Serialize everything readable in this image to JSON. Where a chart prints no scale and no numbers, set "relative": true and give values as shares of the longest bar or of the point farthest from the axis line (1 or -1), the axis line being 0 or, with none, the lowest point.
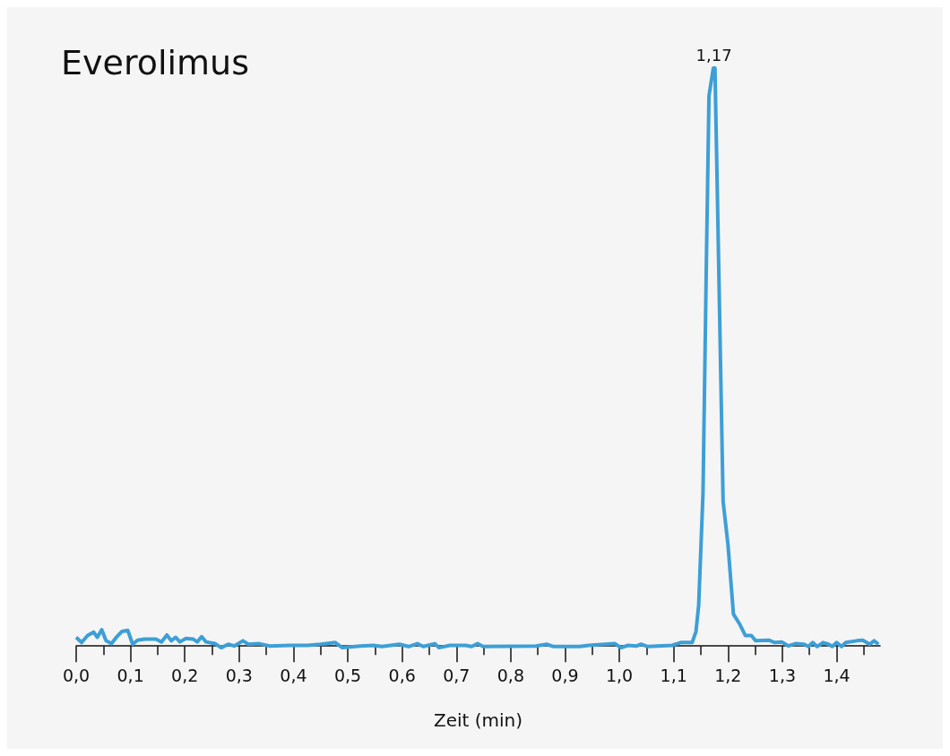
{
  "chart_data": {
    "type": "line",
    "title": "Everolimus",
    "xlabel": "Zeit (min)",
    "relative": true,
    "xlim": [
      0,
      1.48
    ],
    "xticks": [
      {
        "value": 0,
        "label": "0,0"
      },
      {
        "value": 0.05,
        "label": null
      },
      {
        "value": 0.1,
        "label": "0,1"
      },
      {
        "value": 0.15,
        "label": null
      },
      {
        "value": 0.2,
        "label": "0,2"
      },
      {
        "value": 0.25,
        "label": null
      },
      {
        "value": 0.3,
        "label": "0,3"
      },
      {
        "value": 0.35,
        "label": null
      },
      {
        "value": 0.4,
        "label": "0,4"
      },
      {
        "value": 0.45,
        "label": null
      },
      {
        "value": 0.5,
        "label": "0,5"
      },
      {
        "value": 0.55,
        "label": null
      },
      {
        "value": 0.6,
        "label": "0,6"
      },
      {
        "value": 0.65,
        "label": null
      },
      {
        "value": 0.7,
        "label": "0,7"
      },
      {
        "value": 0.75,
        "label": null
      },
      {
        "value": 0.8,
        "label": "0,8"
      },
      {
        "value": 0.85,
        "label": null
      },
      {
        "value": 0.9,
        "label": "0,9"
      },
      {
        "value": 0.95,
        "label": null
      },
      {
        "value": 1.0,
        "label": "1,0"
      },
      {
        "value": 1.05,
        "label": null
      },
      {
        "value": 1.1,
        "label": "1,1"
      },
      {
        "value": 1.15,
        "label": null
      },
      {
        "value": 1.2,
        "label": "1,2"
      },
      {
        "value": 1.25,
        "label": null
      },
      {
        "value": 1.3,
        "label": "1,3"
      },
      {
        "value": 1.35,
        "label": null
      },
      {
        "value": 1.4,
        "label": "1,4"
      },
      {
        "value": 1.45,
        "label": null
      }
    ],
    "annotations": [
      {
        "text": "1,17",
        "x": 1.174,
        "y": 1
      }
    ],
    "marker": "none",
    "line_style": "solid",
    "series": [
      {
        "color": "#3d9fd6",
        "x": [
          0,
          0.01,
          0.021,
          0.032,
          0.039,
          0.047,
          0.055,
          0.065,
          0.074,
          0.084,
          0.095,
          0.104,
          0.113,
          0.126,
          0.147,
          0.157,
          0.167,
          0.175,
          0.183,
          0.191,
          0.202,
          0.215,
          0.223,
          0.231,
          0.239,
          0.256,
          0.267,
          0.28,
          0.291,
          0.307,
          0.317,
          0.337,
          0.356,
          0.393,
          0.426,
          0.45,
          0.477,
          0.49,
          0.523,
          0.547,
          0.563,
          0.595,
          0.612,
          0.628,
          0.639,
          0.66,
          0.668,
          0.688,
          0.717,
          0.728,
          0.739,
          0.749,
          0.846,
          0.866,
          0.879,
          0.927,
          0.943,
          0.992,
          1.003,
          1.016,
          1.032,
          1.04,
          1.052,
          1.097,
          1.113,
          1.134,
          1.141,
          1.146,
          1.154,
          1.16,
          1.165,
          1.17,
          1.173,
          1.176,
          1.183,
          1.191,
          1.2,
          1.21,
          1.222,
          1.232,
          1.243,
          1.251,
          1.275,
          1.286,
          1.299,
          1.311,
          1.324,
          1.34,
          1.348,
          1.356,
          1.364,
          1.375,
          1.385,
          1.392,
          1.4,
          1.409,
          1.417,
          1.437,
          1.448,
          1.461,
          1.469,
          1.477
        ],
        "values": [
          0.015,
          0.006,
          0.018,
          0.024,
          0.015,
          0.028,
          0.009,
          0.004,
          0.015,
          0.025,
          0.027,
          0.003,
          0.01,
          0.012,
          0.012,
          0.007,
          0.019,
          0.009,
          0.015,
          0.007,
          0.013,
          0.012,
          0.007,
          0.016,
          0.007,
          0.004,
          -0.003,
          0.003,
          0,
          0.009,
          0.003,
          0.004,
          0,
          0.001,
          0.001,
          0.003,
          0.006,
          -0.003,
          0,
          0.001,
          -0.001,
          0.003,
          -0.001,
          0.004,
          -0.001,
          0.004,
          -0.003,
          0.001,
          0.001,
          -0.001,
          0.004,
          -0.001,
          0,
          0.003,
          -0.001,
          -0.001,
          0.001,
          0.004,
          -0.003,
          0.001,
          0,
          0.003,
          -0.001,
          0.001,
          0.006,
          0.006,
          0.025,
          0.07,
          0.265,
          0.653,
          0.952,
          0.982,
          1,
          1,
          0.653,
          0.25,
          0.175,
          0.055,
          0.037,
          0.018,
          0.018,
          0.009,
          0.01,
          0.006,
          0.007,
          0,
          0.004,
          0.003,
          -0.001,
          0.006,
          -0.001,
          0.006,
          0.003,
          -0.001,
          0.006,
          -0.001,
          0.006,
          0.009,
          0.01,
          0.003,
          0.009,
          0.003
        ]
      }
    ]
  }
}
